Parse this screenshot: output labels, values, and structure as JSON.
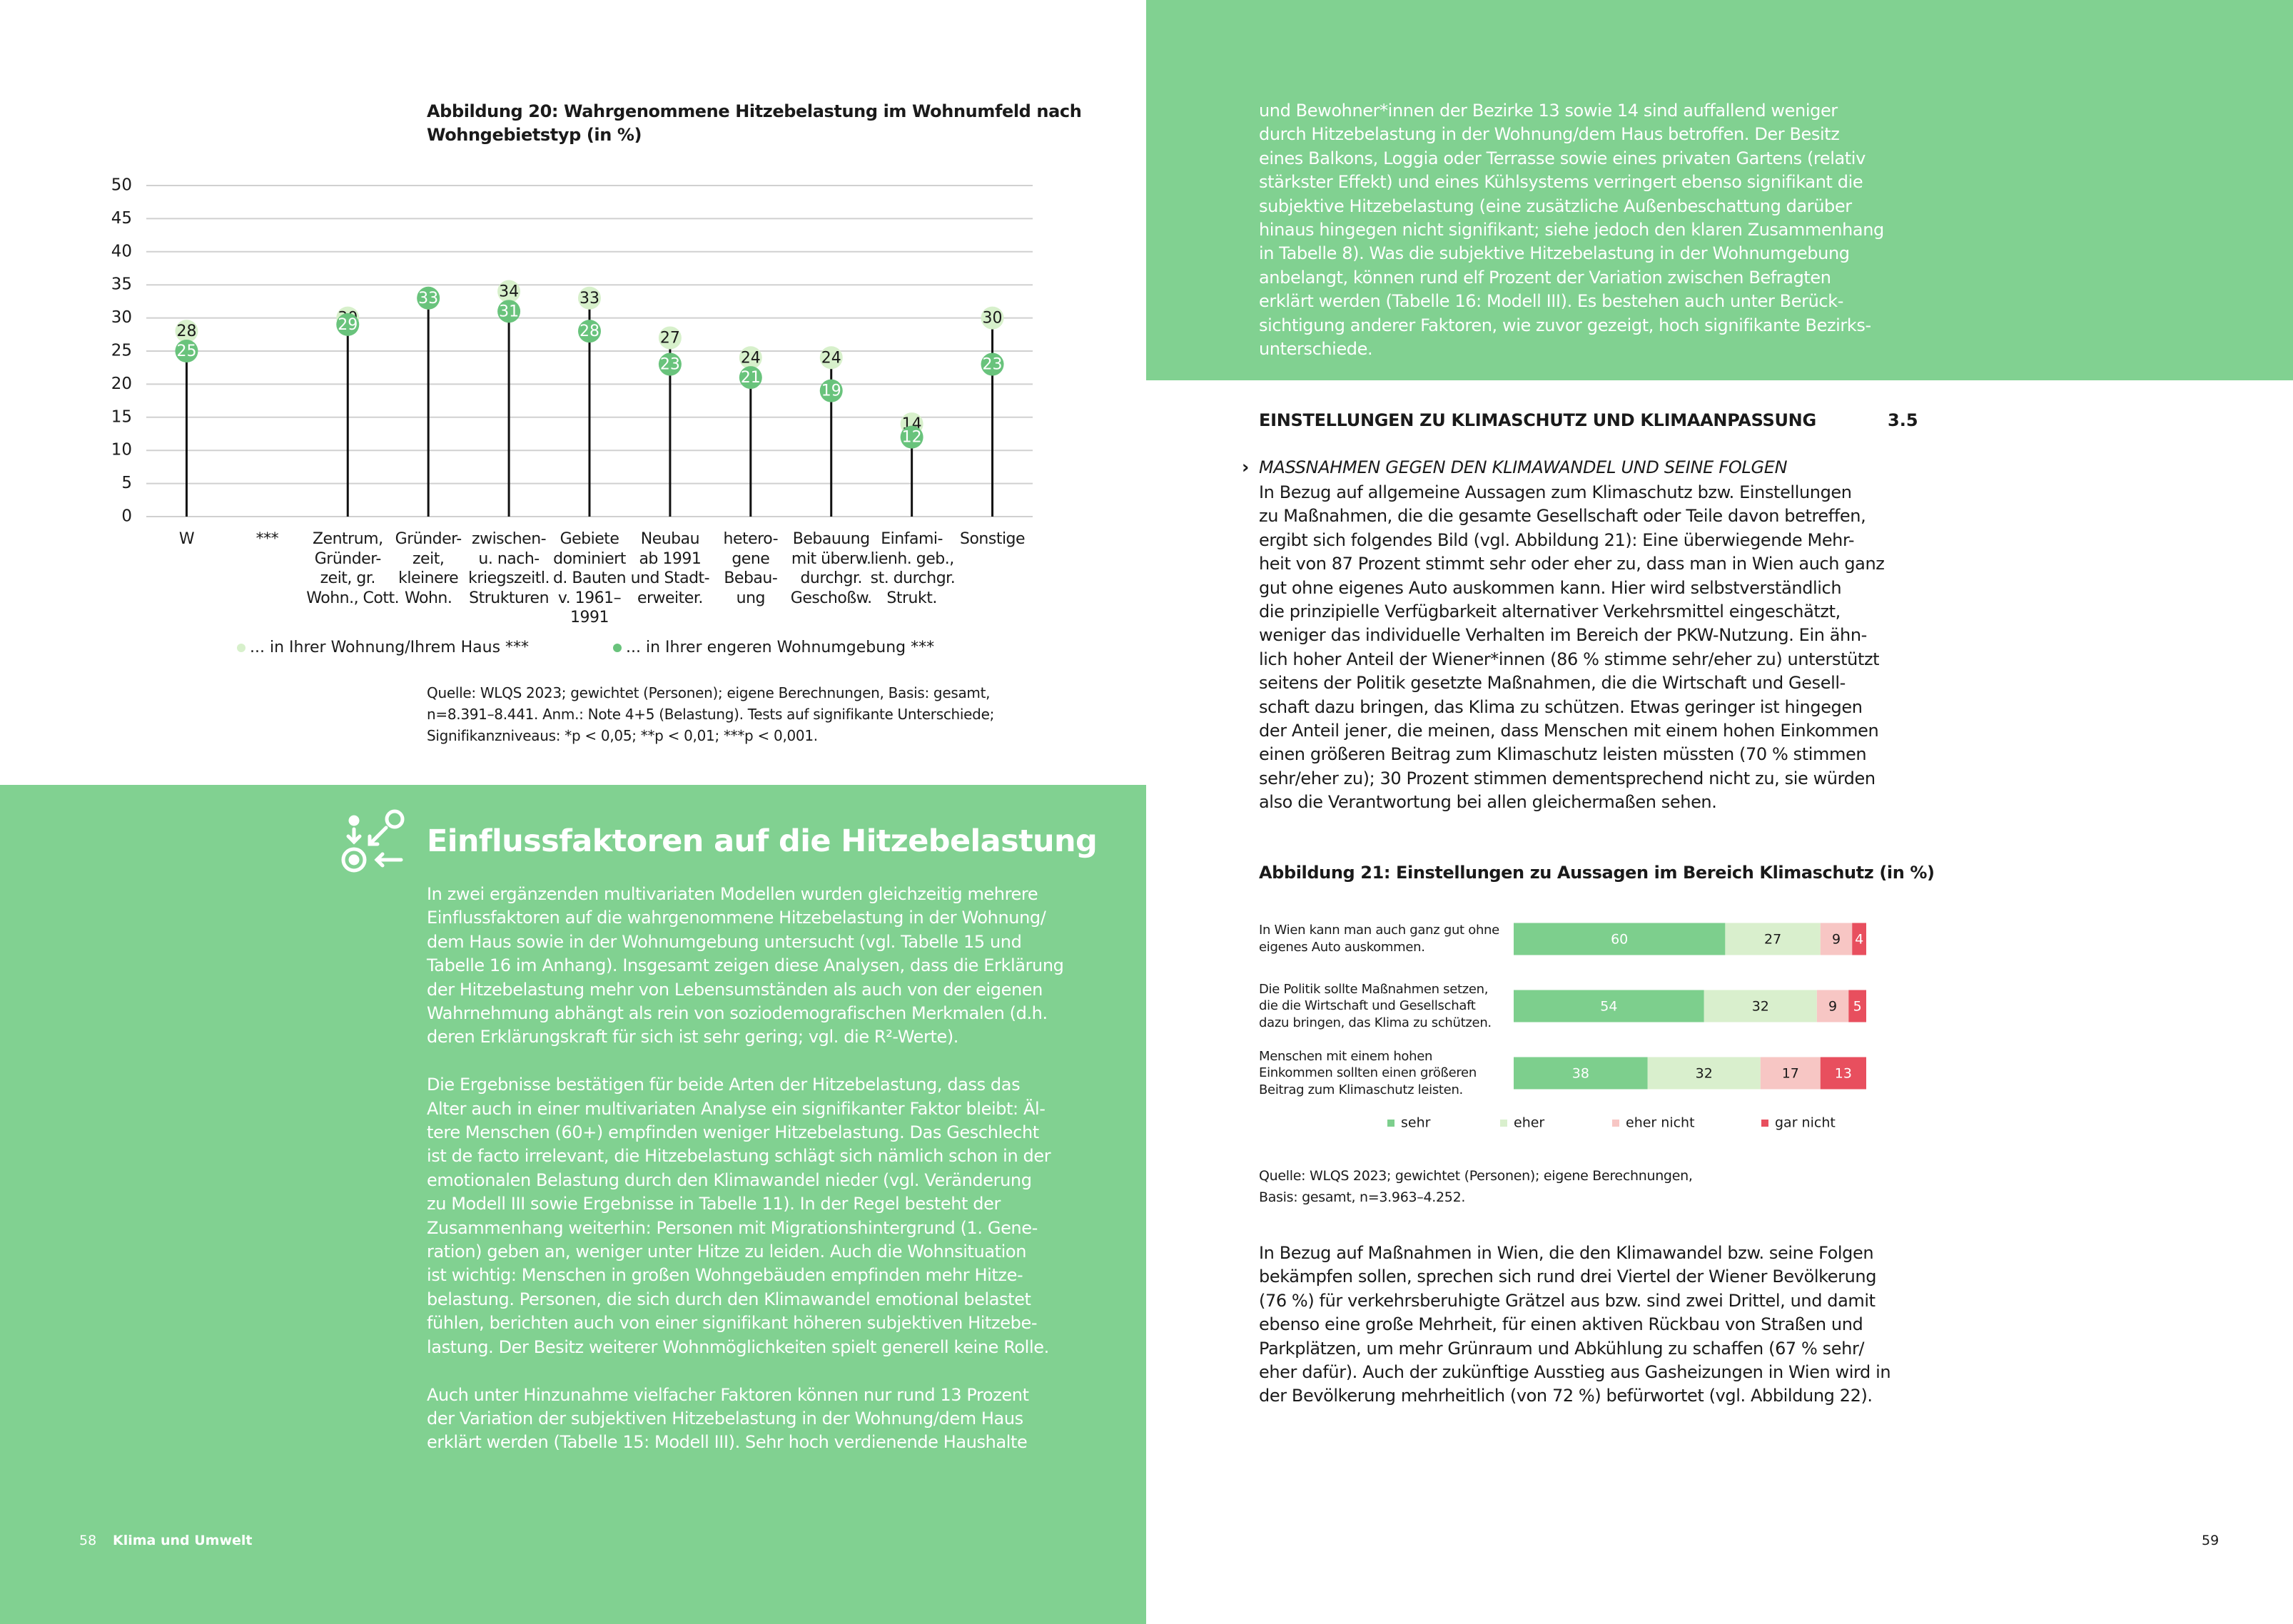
{
  "left_page": {
    "heading": "Einflussfaktoren auf die Hitzebelastung",
    "paragraphs": [
      "In zwei ergänzenden multivariaten Modellen wurden gleichzeitig mehrere\nEinflussfaktoren auf die wahrgenommene Hitzebelastung in der Wohnung/\ndem Haus sowie in der Wohnumgebung untersucht (vgl. Tabelle 15 und\nTabelle 16 im Anhang). Insgesamt zeigen diese Analysen, dass die Erklärung\nder Hitzebelastung mehr von Lebensumständen als auch von der eigenen\nWahrnehmung abhängt als rein von soziodemografischen Merkmalen (d.h.\nderen Erklärungskraft für sich ist sehr gering; vgl. die R²-Werte).",
      "Die Ergebnisse bestätigen für beide Arten der Hitzebelastung, dass das\nAlter auch in einer multivariaten Analyse ein signifikanter Faktor bleibt: Äl-\ntere Menschen (60+) empfinden weniger Hitzebelastung. Das Geschlecht\nist de facto irrelevant, die Hitzebelastung schlägt sich nämlich schon in der\nemotionalen Belastung durch den Klimawandel nieder (vgl. Veränderung\nzu Modell III sowie Ergebnisse in Tabelle 11). In der Regel besteht der\nZusammenhang weiterhin: Personen mit Migrationshintergrund (1. Gene-\nration) geben an, weniger unter Hitze zu leiden. Auch die Wohnsituation\nist wichtig: Menschen in großen Wohngebäuden empfinden mehr Hitze-\nbelastung. Personen, die sich durch den Klimawandel emotional belastet\nfühlen, berichten auch von einer signifikant höheren subjektiven Hitzebe-\nlastung. Der Besitz weiterer Wohnmöglichkeiten spielt generell keine Rolle.",
      "Auch unter Hinzunahme vielfacher Faktoren können nur rund 13 Prozent\nder Variation der subjektiven Hitzebelastung in der Wohnung/dem Haus\nerklärt werden (Tabelle 15: Modell III). Sehr hoch verdienende Haushalte"
    ],
    "footer_page": "58",
    "footer_section": "Klima und Umwelt"
  },
  "right_page": {
    "intro_paragraph": "und Bewohner*innen der Bezirke 13 sowie 14 sind auffallend weniger\ndurch Hitzebelastung in der Wohnung/dem Haus betroffen. Der Besitz\neines Balkons, Loggia oder Terrasse sowie eines privaten Gartens (relativ\nstärkster Effekt) und eines Kühlsystems verringert ebenso signifikant die\nsubjektive Hitzebelastung (eine zusätzliche Außenbeschattung darüber\nhinaus hingegen nicht signifikant; siehe jedoch den klaren Zusammenhang\nin Tabelle 8). Was die subjektive Hitzebelastung in der Wohnumgebung\nanbelangt, können rund elf Prozent der Variation zwischen Befragten\nerklärt werden (Tabelle 16: Modell III). Es bestehen auch unter Berück-\nsichtigung anderer Faktoren, wie zuvor gezeigt, hoch signifikante Bezirks-\nunterschiede.",
    "section_title": "EINSTELLUNGEN ZU KLIMASCHUTZ UND KLIMAANPASSUNG",
    "section_number": "3.5",
    "subsection_marker": "›",
    "subsection_title": "MASSNAHMEN GEGEN DEN KLIMAWANDEL UND SEINE FOLGEN",
    "paragraphs": [
      "In Bezug auf allgemeine Aussagen zum Klimaschutz bzw. Einstellungen\nzu Maßnahmen, die die gesamte Gesellschaft oder Teile davon betreffen,\nergibt sich folgendes Bild (vgl. Abbildung 21): Eine überwiegende Mehr-\nheit von 87 Prozent stimmt sehr oder eher zu, dass man in Wien auch ganz\ngut ohne eigenes Auto auskommen kann. Hier wird selbstverständlich\ndie prinzipielle Verfügbarkeit alternativer Verkehrsmittel eingeschätzt,\nweniger das individuelle Verhalten im Bereich der PKW-Nutzung. Ein ähn-\nlich hoher Anteil der Wiener*innen (86 % stimme sehr/eher zu) unterstützt\nseitens der Politik gesetzte Maßnahmen, die die Wirtschaft und Gesell-\nschaft dazu bringen, das Klima zu schützen. Etwas geringer ist hingegen\nder Anteil jener, die meinen, dass Menschen mit einem hohen Einkommen\neinen größeren Beitrag zum Klimaschutz leisten müssten (70 % stimmen\nsehr/eher zu); 30 Prozent stimmen dementsprechend nicht zu, sie würden\nalso die Verantwortung bei allen gleichermaßen sehen.",
      "In Bezug auf Maßnahmen in Wien, die den Klimawandel bzw. seine Folgen\nbekämpfen sollen, sprechen sich rund drei Viertel der Wiener Bevölkerung\n(76 %) für verkehrsberuhigte Grätzel aus bzw. sind zwei Drittel, und damit\nebenso eine große Mehrheit, für einen aktiven Rückbau von Straßen und\nParkplätzen, um mehr Grünraum und Abkühlung zu schaffen (67 % sehr/\neher dafür). Auch der zukünftige Ausstieg aus Gasheizungen in Wien wird in\nder Bevölkerung mehrheitlich (von 72 %) befürwortet (vgl. Abbildung 22)."
    ],
    "footer_page": "59"
  },
  "chart_data": [
    {
      "type": "lollipop",
      "title": "Abbildung 20: Wahrgenommene Hitzebelastung im Wohnumfeld nach\nWohngebietstyp (in %)",
      "categories": [
        "W",
        "***",
        "Zentrum,\nGründer-\nzeit, gr.\nWohn., Cott.",
        "Gründer-\nzeit,\nkleinere\nWohn.",
        "zwischen-\nu. nach-\nkriegszeitl.\nStrukturen",
        "Gebiete\ndominiert\nd. Bauten\nv. 1961–\n1991",
        "Neubau\nab 1991\nund Stadt-\nerweiter.",
        "hetero-\ngene\nBebau-\nung",
        "Bebauung\nmit überw.\ndurchgr.\nGeschoßw.",
        "Einfami-\nlienh. geb.,\nst. durchgr.\nStrukt.",
        "Sonstige"
      ],
      "series": [
        {
          "name": "... in Ihrer Wohnung/Ihrem Haus ***",
          "color": "#d7f0cb",
          "values": [
            28,
            null,
            30,
            33,
            34,
            33,
            27,
            24,
            24,
            14,
            30
          ]
        },
        {
          "name": "... in Ihrer engeren Wohnumgebung ***",
          "color": "#69c37c",
          "values": [
            25,
            null,
            29,
            33,
            31,
            28,
            23,
            21,
            19,
            12,
            23
          ]
        }
      ],
      "ylim": [
        0,
        50
      ],
      "yticks": [
        0,
        5,
        10,
        15,
        20,
        25,
        30,
        35,
        40,
        45,
        50
      ],
      "grid": true,
      "source": "Quelle: WLQS 2023; gewichtet (Personen); eigene Berechnungen, Basis: gesamt,\nn=8.391–8.441. Anm.: Note 4+5 (Belastung). Tests auf signifikante Unterschiede;\nSignifikanzniveaus: *p < 0,05; **p < 0,01; ***p < 0,001."
    },
    {
      "type": "stacked_barh",
      "title": "Abbildung 21: Einstellungen zu Aussagen im Bereich Klimaschutz (in %)",
      "categories": [
        "In Wien kann man auch ganz gut ohne\neigenes Auto auskommen.",
        "Die Politik sollte Maßnahmen setzen,\ndie die Wirtschaft und Gesellschaft\ndazu bringen, das Klima zu schützen.",
        "Menschen mit einem hohen\nEinkommen sollten einen größeren\nBeitrag zum Klimaschutz leisten."
      ],
      "series": [
        {
          "name": "sehr",
          "color": "#7dcf8d",
          "values": [
            60,
            54,
            38
          ]
        },
        {
          "name": "eher",
          "color": "#d9efcd",
          "values": [
            27,
            32,
            32
          ]
        },
        {
          "name": "eher nicht",
          "color": "#f7c6c4",
          "values": [
            9,
            9,
            17
          ]
        },
        {
          "name": "gar nicht",
          "color": "#e84f5e",
          "values": [
            4,
            5,
            13
          ]
        }
      ],
      "xlim": [
        0,
        100
      ],
      "source": "Quelle: WLQS 2023; gewichtet (Personen); eigene Berechnungen,\nBasis: gesamt, n=3.963–4.252."
    }
  ]
}
